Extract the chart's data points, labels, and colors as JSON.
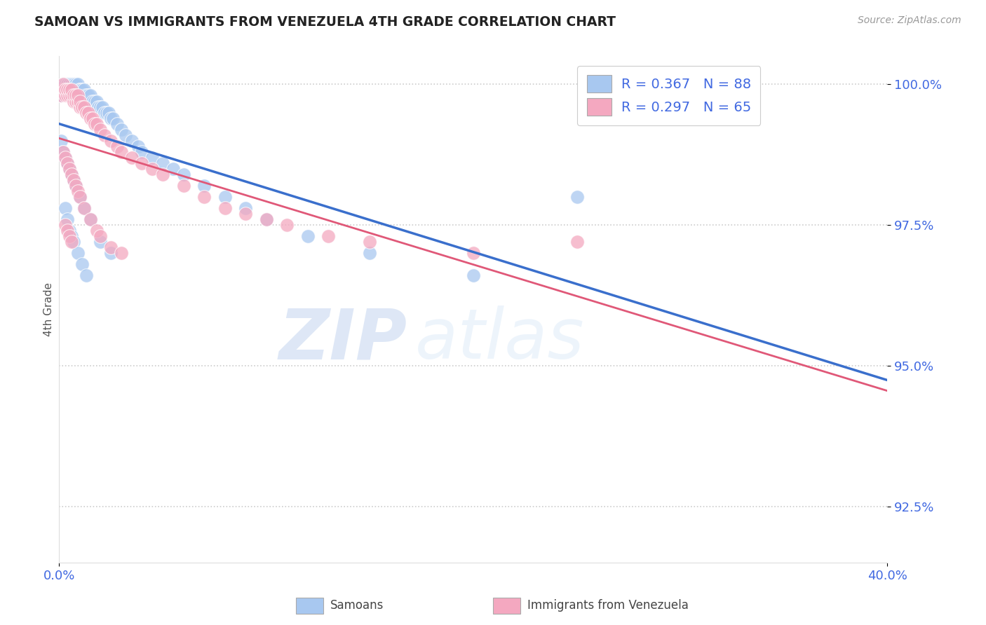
{
  "title": "SAMOAN VS IMMIGRANTS FROM VENEZUELA 4TH GRADE CORRELATION CHART",
  "source": "Source: ZipAtlas.com",
  "ylabel": "4th Grade",
  "xlim": [
    0.0,
    0.4
  ],
  "ylim": [
    0.915,
    1.005
  ],
  "yticks": [
    0.925,
    0.95,
    0.975,
    1.0
  ],
  "ytick_labels": [
    "92.5%",
    "95.0%",
    "97.5%",
    "100.0%"
  ],
  "xticks": [
    0.0,
    0.4
  ],
  "xtick_labels": [
    "0.0%",
    "40.0%"
  ],
  "samoan_color": "#a8c8f0",
  "venezuela_color": "#f4a8c0",
  "samoan_line_color": "#3a6fcc",
  "venezuela_line_color": "#e05878",
  "watermark_ZIP": "ZIP",
  "watermark_atlas": "atlas",
  "legend_label_samoan": "Samoans",
  "legend_label_venezuela": "Immigrants from Venezuela",
  "background_color": "#ffffff",
  "grid_color": "#cccccc",
  "tick_label_color": "#4169e1",
  "samoan_R": 0.367,
  "samoan_N": 88,
  "venezuela_R": 0.297,
  "venezuela_N": 65,
  "samoan_x": [
    0.001,
    0.002,
    0.002,
    0.003,
    0.003,
    0.003,
    0.004,
    0.004,
    0.004,
    0.005,
    0.005,
    0.005,
    0.006,
    0.006,
    0.006,
    0.007,
    0.007,
    0.007,
    0.007,
    0.008,
    0.008,
    0.008,
    0.009,
    0.009,
    0.009,
    0.01,
    0.01,
    0.01,
    0.011,
    0.011,
    0.012,
    0.012,
    0.013,
    0.013,
    0.014,
    0.014,
    0.015,
    0.015,
    0.016,
    0.017,
    0.018,
    0.019,
    0.02,
    0.021,
    0.022,
    0.023,
    0.024,
    0.025,
    0.026,
    0.028,
    0.03,
    0.032,
    0.035,
    0.038,
    0.04,
    0.045,
    0.05,
    0.055,
    0.06,
    0.07,
    0.08,
    0.09,
    0.1,
    0.12,
    0.15,
    0.2,
    0.25,
    0.001,
    0.002,
    0.003,
    0.004,
    0.005,
    0.006,
    0.007,
    0.008,
    0.01,
    0.012,
    0.015,
    0.02,
    0.025,
    0.003,
    0.004,
    0.005,
    0.006,
    0.007,
    0.009,
    0.011,
    0.013
  ],
  "samoan_y": [
    0.998,
    0.999,
    1.0,
    0.999,
    1.0,
    1.0,
    0.999,
    1.0,
    1.0,
    0.999,
    1.0,
    0.998,
    0.999,
    0.999,
    1.0,
    0.998,
    0.999,
    0.999,
    1.0,
    0.998,
    0.999,
    1.0,
    0.998,
    0.999,
    1.0,
    0.998,
    0.999,
    0.999,
    0.998,
    0.999,
    0.998,
    0.999,
    0.997,
    0.998,
    0.997,
    0.998,
    0.997,
    0.998,
    0.997,
    0.997,
    0.997,
    0.996,
    0.996,
    0.996,
    0.995,
    0.995,
    0.995,
    0.994,
    0.994,
    0.993,
    0.992,
    0.991,
    0.99,
    0.989,
    0.988,
    0.987,
    0.986,
    0.985,
    0.984,
    0.982,
    0.98,
    0.978,
    0.976,
    0.973,
    0.97,
    0.966,
    0.98,
    0.99,
    0.988,
    0.987,
    0.986,
    0.985,
    0.984,
    0.983,
    0.982,
    0.98,
    0.978,
    0.976,
    0.972,
    0.97,
    0.978,
    0.976,
    0.974,
    0.973,
    0.972,
    0.97,
    0.968,
    0.966
  ],
  "venezuela_x": [
    0.001,
    0.002,
    0.002,
    0.003,
    0.003,
    0.004,
    0.004,
    0.005,
    0.005,
    0.006,
    0.006,
    0.007,
    0.007,
    0.008,
    0.008,
    0.009,
    0.009,
    0.01,
    0.01,
    0.011,
    0.012,
    0.013,
    0.014,
    0.015,
    0.016,
    0.017,
    0.018,
    0.02,
    0.022,
    0.025,
    0.028,
    0.03,
    0.035,
    0.04,
    0.045,
    0.05,
    0.06,
    0.07,
    0.08,
    0.09,
    0.1,
    0.11,
    0.13,
    0.15,
    0.2,
    0.25,
    0.002,
    0.003,
    0.004,
    0.005,
    0.006,
    0.007,
    0.008,
    0.009,
    0.01,
    0.012,
    0.015,
    0.018,
    0.02,
    0.025,
    0.03,
    0.003,
    0.004,
    0.005,
    0.006
  ],
  "venezuela_y": [
    0.998,
    0.999,
    1.0,
    0.998,
    0.999,
    0.998,
    0.999,
    0.998,
    0.999,
    0.998,
    0.999,
    0.997,
    0.998,
    0.997,
    0.998,
    0.997,
    0.998,
    0.996,
    0.997,
    0.996,
    0.996,
    0.995,
    0.995,
    0.994,
    0.994,
    0.993,
    0.993,
    0.992,
    0.991,
    0.99,
    0.989,
    0.988,
    0.987,
    0.986,
    0.985,
    0.984,
    0.982,
    0.98,
    0.978,
    0.977,
    0.976,
    0.975,
    0.973,
    0.972,
    0.97,
    0.972,
    0.988,
    0.987,
    0.986,
    0.985,
    0.984,
    0.983,
    0.982,
    0.981,
    0.98,
    0.978,
    0.976,
    0.974,
    0.973,
    0.971,
    0.97,
    0.975,
    0.974,
    0.973,
    0.972
  ]
}
